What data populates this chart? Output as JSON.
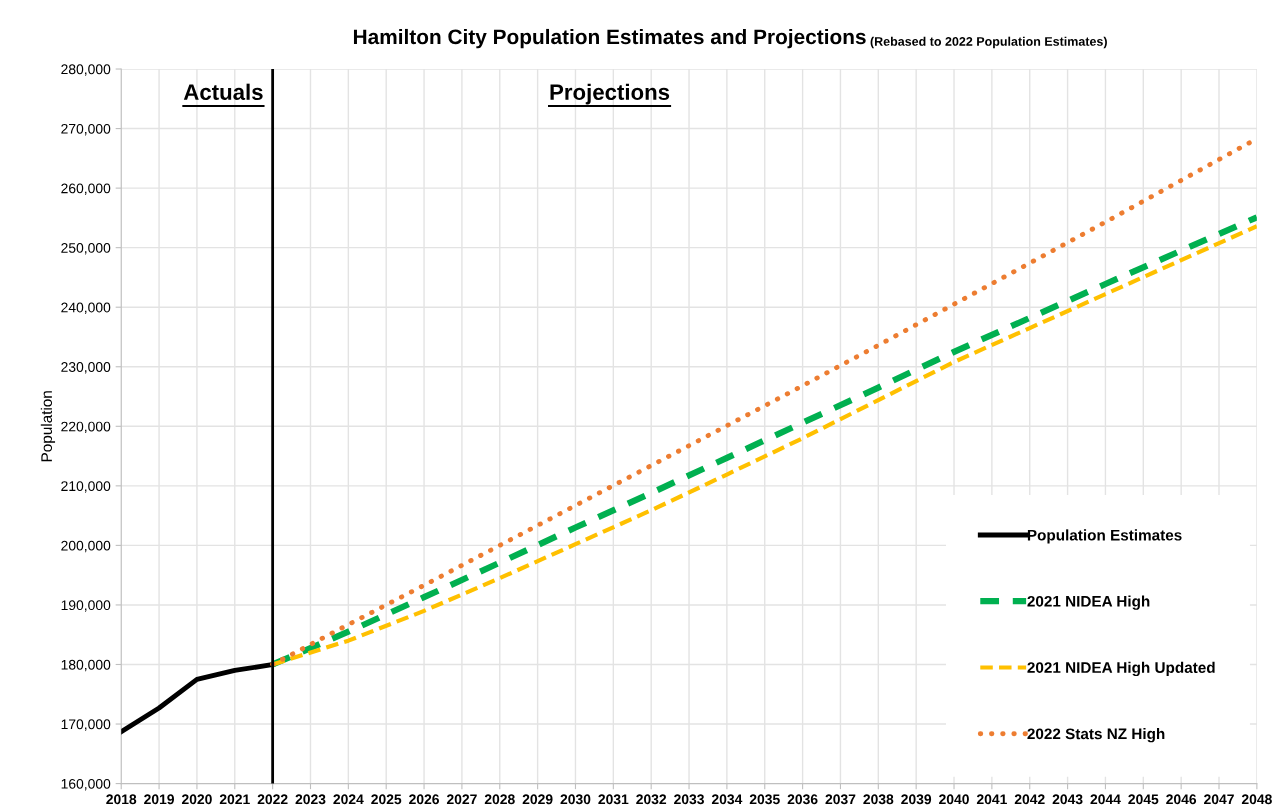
{
  "chart_data": {
    "type": "line",
    "title": "Hamilton City Population Estimates and Projections",
    "subtitle": "(Rebased to 2022 Population Estimates)",
    "ylabel": "Population",
    "xlim": [
      2018,
      2048
    ],
    "xticks": [
      2018,
      2019,
      2020,
      2021,
      2022,
      2023,
      2024,
      2025,
      2026,
      2027,
      2028,
      2029,
      2030,
      2031,
      2032,
      2033,
      2034,
      2035,
      2036,
      2037,
      2038,
      2039,
      2040,
      2041,
      2042,
      2043,
      2044,
      2045,
      2046,
      2047,
      2048
    ],
    "ylim": [
      160000,
      280000
    ],
    "yticks": [
      {
        "value": 160000,
        "label": "160,000"
      },
      {
        "value": 170000,
        "label": "170,000"
      },
      {
        "value": 180000,
        "label": "180,000"
      },
      {
        "value": 190000,
        "label": "190,000"
      },
      {
        "value": 200000,
        "label": "200,000"
      },
      {
        "value": 210000,
        "label": "210,000"
      },
      {
        "value": 220000,
        "label": "220,000"
      },
      {
        "value": 230000,
        "label": "230,000"
      },
      {
        "value": 240000,
        "label": "240,000"
      },
      {
        "value": 250000,
        "label": "250,000"
      },
      {
        "value": 260000,
        "label": "260,000"
      },
      {
        "value": 270000,
        "label": "270,000"
      },
      {
        "value": 280000,
        "label": "280,000"
      }
    ],
    "grid": true,
    "legend": "bottom right",
    "series": [
      {
        "name": "Population Estimates",
        "color": "#000000",
        "line_style": "solid",
        "x": [
          2018,
          2019,
          2020,
          2021,
          2022
        ],
        "values": [
          168700,
          172700,
          177500,
          179000,
          180000
        ]
      },
      {
        "name": "2021 NIDEA High",
        "color": "#00b050",
        "line_style": "dashed",
        "x": [
          2022,
          2024,
          2026,
          2028,
          2030,
          2032,
          2034,
          2036,
          2038,
          2040,
          2042,
          2044,
          2046,
          2048
        ],
        "values": [
          180000,
          185500,
          191300,
          197100,
          203000,
          208800,
          214700,
          220600,
          226500,
          232500,
          238200,
          243900,
          249500,
          255100
        ]
      },
      {
        "name": "2021 NIDEA High Updated",
        "color": "#ffc000",
        "line_style": "dashed",
        "x": [
          2022,
          2024,
          2026,
          2028,
          2030,
          2032,
          2034,
          2036,
          2038,
          2040,
          2042,
          2044,
          2046,
          2048
        ],
        "values": [
          180000,
          184000,
          189000,
          194500,
          200200,
          205900,
          211900,
          218000,
          224400,
          230800,
          236500,
          242200,
          247900,
          253600
        ]
      },
      {
        "name": "2022 Stats NZ High",
        "color": "#ed7d31",
        "line_style": "dotted",
        "x": [
          2022,
          2024,
          2026,
          2028,
          2030,
          2032,
          2034,
          2036,
          2038,
          2040,
          2042,
          2044,
          2046,
          2048
        ],
        "values": [
          180000,
          186700,
          193300,
          200000,
          206700,
          213400,
          220100,
          226800,
          233600,
          240500,
          247400,
          254300,
          261300,
          268300
        ]
      }
    ],
    "ref_lines": [
      {
        "axis": "x",
        "value": 2022,
        "color": "#000000"
      }
    ],
    "annotations": [
      "Actuals",
      "Projections"
    ]
  }
}
